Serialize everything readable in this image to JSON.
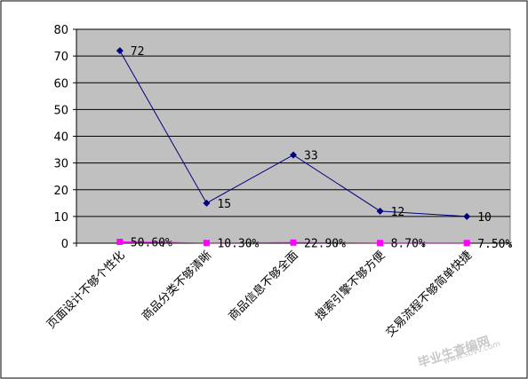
{
  "chart_data": {
    "type": "line",
    "categories": [
      "页面设计不够个性化",
      "商品分类不够清晰",
      "商品信息不够全面",
      "搜索引擎不够方便",
      "交易流程不够简单快捷"
    ],
    "series": [
      {
        "values": [
          72,
          15,
          33,
          12,
          10
        ],
        "labels": [
          "72",
          "15",
          "33",
          "12",
          "10"
        ],
        "color": "#000080",
        "marker": "diamond"
      },
      {
        "values": [
          0.506,
          0.103,
          0.229,
          0.087,
          0.075
        ],
        "labels": [
          "50.60%",
          "10.30%",
          "22.90%",
          "8.70%",
          "7.50%"
        ],
        "color": "#ff00ff",
        "marker": "square"
      }
    ],
    "yticks": [
      "0",
      "10",
      "20",
      "30",
      "40",
      "50",
      "60",
      "70",
      "80"
    ],
    "ylim": [
      0,
      80
    ],
    "grid": true,
    "plot_background": "#c0c0c0",
    "legend": "none"
  },
  "watermark": {
    "main": "毕业生查编网",
    "url": "www.sbvv.com"
  }
}
